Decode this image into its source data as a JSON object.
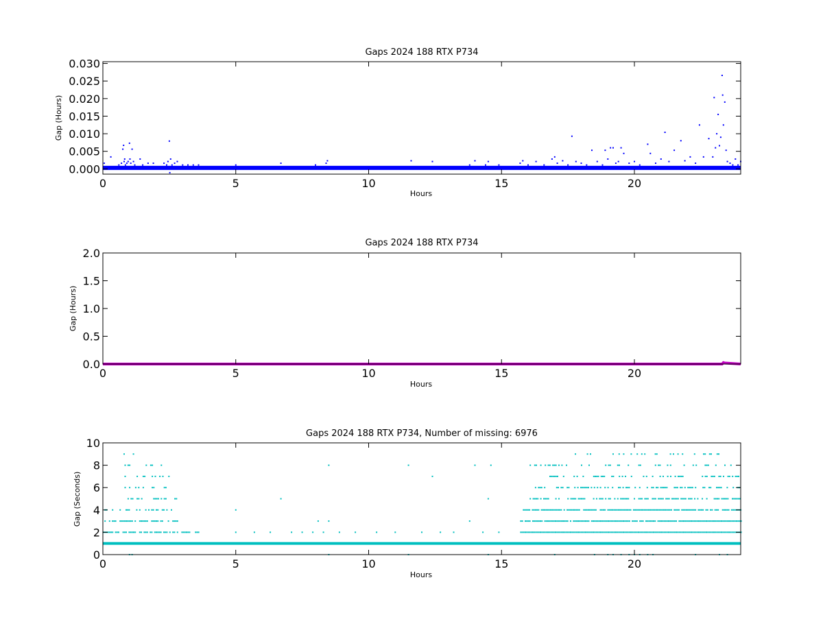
{
  "chart_data": [
    {
      "type": "scatter",
      "title": "Gaps 2024 188 RTX  P734",
      "xlabel": "Hours",
      "ylabel": "Gap (Hours)",
      "xlim": [
        0,
        24
      ],
      "ylim": [
        -0.0015,
        0.0305
      ],
      "x_ticks": [
        "0",
        "5",
        "10",
        "15",
        "20"
      ],
      "y_ticks": [
        "0.000",
        "0.005",
        "0.010",
        "0.015",
        "0.020",
        "0.025",
        "0.030"
      ],
      "color": "#0000ff",
      "series": [
        {
          "baseline_value": 0.00028,
          "points": [
            [
              0.05,
              0.0016
            ],
            [
              0.2,
              0.0006
            ],
            [
              0.3,
              0.0034
            ],
            [
              0.45,
              0.0006
            ],
            [
              0.6,
              0.0011
            ],
            [
              0.7,
              0.0016
            ],
            [
              0.75,
              0.0056
            ],
            [
              0.78,
              0.0067
            ],
            [
              0.8,
              0.0021
            ],
            [
              0.82,
              0.0028
            ],
            [
              0.85,
              0.0011
            ],
            [
              0.9,
              0.0016
            ],
            [
              0.95,
              0.0021
            ],
            [
              1.0,
              0.0073
            ],
            [
              1.02,
              0.0028
            ],
            [
              1.05,
              0.0016
            ],
            [
              1.1,
              0.0056
            ],
            [
              1.15,
              0.0021
            ],
            [
              1.2,
              0.0011
            ],
            [
              1.4,
              0.0028
            ],
            [
              1.5,
              0.0011
            ],
            [
              1.7,
              0.0016
            ],
            [
              1.8,
              0.0006
            ],
            [
              1.9,
              0.0016
            ],
            [
              2.1,
              0.0006
            ],
            [
              2.3,
              0.0016
            ],
            [
              2.4,
              0.0011
            ],
            [
              2.45,
              0.0021
            ],
            [
              2.5,
              0.0079
            ],
            [
              2.52,
              -0.0011
            ],
            [
              2.55,
              0.0028
            ],
            [
              2.6,
              0.0011
            ],
            [
              2.7,
              0.0016
            ],
            [
              2.8,
              0.0021
            ],
            [
              3.0,
              0.0011
            ],
            [
              3.2,
              0.0011
            ],
            [
              3.4,
              0.0011
            ],
            [
              3.6,
              0.0011
            ],
            [
              5.0,
              0.0011
            ],
            [
              6.7,
              0.0016
            ],
            [
              8.0,
              0.0011
            ],
            [
              8.4,
              0.0016
            ],
            [
              8.45,
              0.0023
            ],
            [
              11.6,
              0.0023
            ],
            [
              12.4,
              0.0021
            ],
            [
              13.8,
              0.0011
            ],
            [
              14.0,
              0.0023
            ],
            [
              14.4,
              0.0011
            ],
            [
              14.5,
              0.0021
            ],
            [
              14.9,
              0.0011
            ],
            [
              15.7,
              0.0016
            ],
            [
              15.8,
              0.0023
            ],
            [
              16.0,
              0.0011
            ],
            [
              16.3,
              0.0021
            ],
            [
              16.6,
              0.0011
            ],
            [
              16.9,
              0.0028
            ],
            [
              17.0,
              0.0034
            ],
            [
              17.1,
              0.0016
            ],
            [
              17.3,
              0.0023
            ],
            [
              17.5,
              0.0011
            ],
            [
              17.65,
              0.0093
            ],
            [
              17.8,
              0.0021
            ],
            [
              18.0,
              0.0016
            ],
            [
              18.2,
              0.0011
            ],
            [
              18.4,
              0.0053
            ],
            [
              18.6,
              0.0021
            ],
            [
              18.8,
              0.0011
            ],
            [
              18.9,
              0.0053
            ],
            [
              19.0,
              0.0028
            ],
            [
              19.1,
              0.006
            ],
            [
              19.2,
              0.006
            ],
            [
              19.3,
              0.0016
            ],
            [
              19.4,
              0.0021
            ],
            [
              19.5,
              0.006
            ],
            [
              19.6,
              0.0044
            ],
            [
              19.8,
              0.0016
            ],
            [
              20.0,
              0.0021
            ],
            [
              20.2,
              0.0011
            ],
            [
              20.5,
              0.007
            ],
            [
              20.6,
              0.0044
            ],
            [
              20.8,
              0.0016
            ],
            [
              21.0,
              0.0028
            ],
            [
              21.15,
              0.0104
            ],
            [
              21.3,
              0.0021
            ],
            [
              21.5,
              0.0053
            ],
            [
              21.75,
              0.008
            ],
            [
              21.9,
              0.0023
            ],
            [
              22.1,
              0.0034
            ],
            [
              22.3,
              0.0016
            ],
            [
              22.45,
              0.0125
            ],
            [
              22.6,
              0.0034
            ],
            [
              22.8,
              0.0086
            ],
            [
              22.95,
              0.0034
            ],
            [
              23.0,
              0.0203
            ],
            [
              23.05,
              0.006
            ],
            [
              23.1,
              0.01
            ],
            [
              23.15,
              0.0155
            ],
            [
              23.2,
              0.0066
            ],
            [
              23.25,
              0.009
            ],
            [
              23.3,
              0.0266
            ],
            [
              23.32,
              0.021
            ],
            [
              23.35,
              0.0125
            ],
            [
              23.4,
              0.019
            ],
            [
              23.45,
              0.0053
            ],
            [
              23.5,
              0.0021
            ],
            [
              23.6,
              0.0016
            ],
            [
              23.7,
              0.0011
            ],
            [
              23.8,
              0.0028
            ],
            [
              23.9,
              0.0011
            ],
            [
              24.0,
              0.0021
            ]
          ]
        }
      ]
    },
    {
      "type": "line",
      "title": "Gaps 2024 188 RTX  P734",
      "xlabel": "Hours",
      "ylabel": "Gap (Hours)",
      "xlim": [
        0,
        24
      ],
      "ylim": [
        0,
        2.0
      ],
      "x_ticks": [
        "0",
        "5",
        "10",
        "15",
        "20"
      ],
      "y_ticks": [
        "0.0",
        "0.5",
        "1.0",
        "1.5",
        "2.0"
      ],
      "color": "#bf00bf",
      "series": [
        {
          "values": [
            [
              0,
              0.0003
            ],
            [
              23.3,
              0.0003
            ],
            [
              23.35,
              0.026
            ],
            [
              23.4,
              0.019
            ],
            [
              24,
              0.0003
            ]
          ]
        }
      ]
    },
    {
      "type": "scatter",
      "title": "Gaps 2024 188 RTX  P734, Number of missing: 6976",
      "xlabel": "Hours",
      "ylabel": "Gap (Seconds)",
      "xlim": [
        0,
        24
      ],
      "ylim": [
        0,
        10
      ],
      "x_ticks": [
        "0",
        "5",
        "10",
        "15",
        "20"
      ],
      "y_ticks": [
        "0",
        "2",
        "4",
        "6",
        "8",
        "10"
      ],
      "color": "#00bfbf",
      "series": [
        {
          "continuous_levels": [
            1
          ],
          "level_segments": [
            {
              "level": 2,
              "from": 0.0,
              "to": 3.6,
              "density": 0.6
            },
            {
              "level": 2,
              "from": 15.7,
              "to": 24.0,
              "density": 1.0
            },
            {
              "level": 3,
              "from": 0.0,
              "to": 2.8,
              "density": 0.55
            },
            {
              "level": 3,
              "from": 15.7,
              "to": 24.0,
              "density": 0.9
            },
            {
              "level": 4,
              "from": 0.0,
              "to": 2.6,
              "density": 0.4
            },
            {
              "level": 4,
              "from": 15.8,
              "to": 24.0,
              "density": 0.85
            },
            {
              "level": 5,
              "from": 0.7,
              "to": 2.8,
              "density": 0.3
            },
            {
              "level": 5,
              "from": 16.0,
              "to": 24.0,
              "density": 0.6
            },
            {
              "level": 6,
              "from": 0.7,
              "to": 2.5,
              "density": 0.25
            },
            {
              "level": 6,
              "from": 16.2,
              "to": 24.0,
              "density": 0.55
            },
            {
              "level": 7,
              "from": 0.7,
              "to": 2.5,
              "density": 0.2
            },
            {
              "level": 7,
              "from": 16.8,
              "to": 24.0,
              "density": 0.45
            },
            {
              "level": 8,
              "from": 0.7,
              "to": 2.8,
              "density": 0.12
            },
            {
              "level": 8,
              "from": 16.0,
              "to": 24.0,
              "density": 0.25
            },
            {
              "level": 9,
              "from": 17.3,
              "to": 24.0,
              "density": 0.15
            }
          ],
          "points": [
            [
              0.8,
              9
            ],
            [
              1.15,
              9
            ],
            [
              5.0,
              2
            ],
            [
              5.0,
              4
            ],
            [
              5.7,
              2
            ],
            [
              6.3,
              2
            ],
            [
              6.7,
              5
            ],
            [
              7.1,
              2
            ],
            [
              7.5,
              2
            ],
            [
              7.9,
              2
            ],
            [
              8.3,
              2
            ],
            [
              8.1,
              3
            ],
            [
              8.5,
              3
            ],
            [
              8.5,
              8
            ],
            [
              8.9,
              2
            ],
            [
              9.5,
              2
            ],
            [
              10.3,
              2
            ],
            [
              11.0,
              2
            ],
            [
              11.5,
              8
            ],
            [
              12.0,
              2
            ],
            [
              12.4,
              7
            ],
            [
              12.7,
              2
            ],
            [
              13.2,
              2
            ],
            [
              13.8,
              3
            ],
            [
              14.0,
              8
            ],
            [
              14.3,
              2
            ],
            [
              14.5,
              5
            ],
            [
              14.6,
              8
            ],
            [
              14.9,
              2
            ],
            [
              1.0,
              0
            ],
            [
              1.1,
              0
            ],
            [
              8.5,
              0
            ],
            [
              11.5,
              0
            ],
            [
              14.5,
              0
            ],
            [
              17.0,
              0
            ],
            [
              18.5,
              0
            ],
            [
              19.0,
              0
            ],
            [
              19.2,
              0
            ],
            [
              19.5,
              0
            ],
            [
              19.8,
              0
            ],
            [
              20.0,
              0
            ],
            [
              20.2,
              0
            ],
            [
              20.5,
              0
            ],
            [
              20.7,
              0
            ],
            [
              22.3,
              0
            ],
            [
              23.2,
              0
            ],
            [
              23.5,
              0
            ]
          ]
        }
      ]
    }
  ]
}
